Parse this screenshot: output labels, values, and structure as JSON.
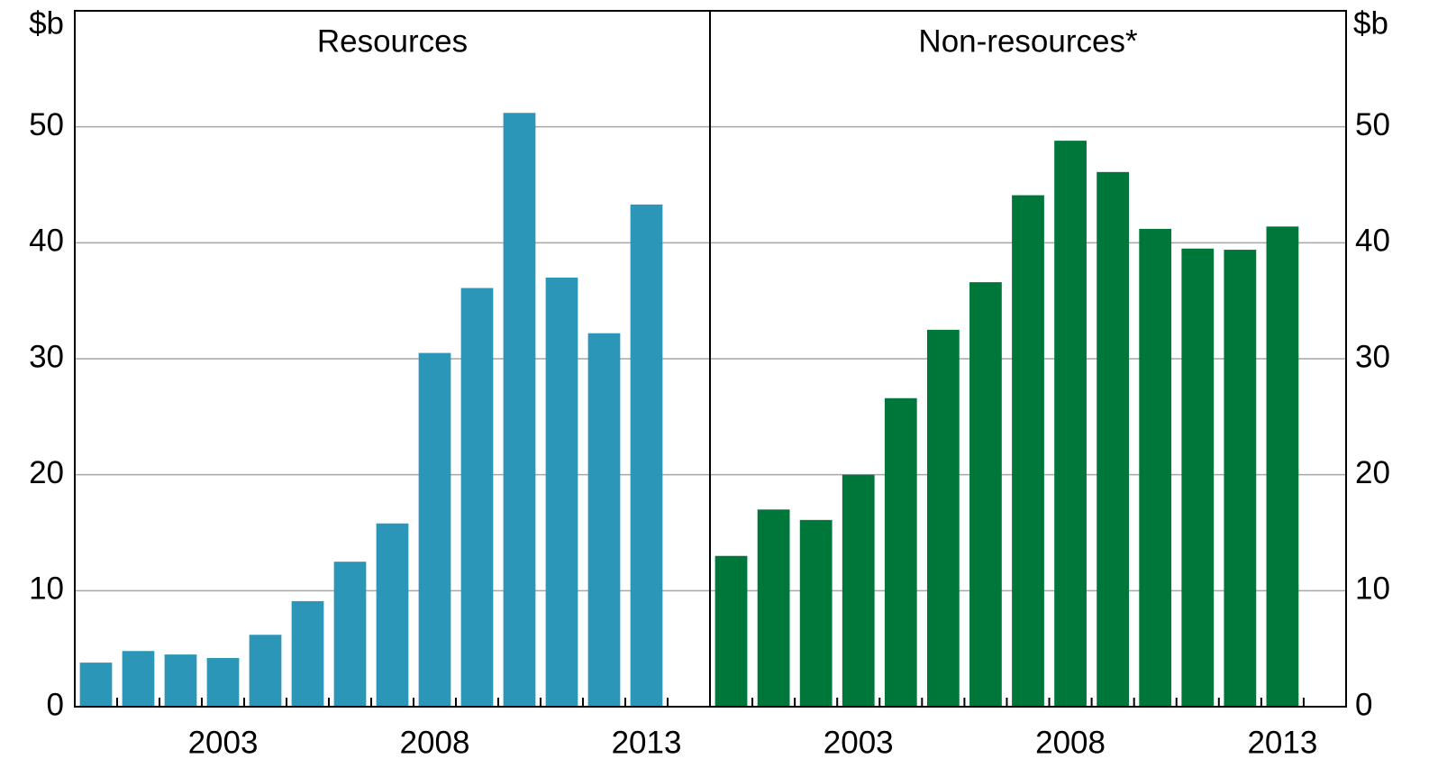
{
  "chart_data": [
    {
      "type": "bar",
      "title": "Resources",
      "y_unit": "$b",
      "color": "#2b96b8",
      "categories": [
        null,
        null,
        null,
        "2003",
        null,
        null,
        null,
        null,
        "2008",
        null,
        null,
        null,
        null,
        "2013"
      ],
      "values": [
        3.8,
        4.8,
        4.5,
        4.2,
        6.2,
        9.1,
        12.5,
        15.8,
        30.5,
        36.1,
        51.2,
        37.0,
        32.2,
        43.3
      ],
      "ylim": [
        0,
        60
      ],
      "yticks": [
        0,
        10,
        20,
        30,
        40,
        50
      ],
      "grid": true,
      "axis_side": "left"
    },
    {
      "type": "bar",
      "title": "Non-resources*",
      "y_unit": "$b",
      "color": "#00773a",
      "categories": [
        null,
        null,
        null,
        "2003",
        null,
        null,
        null,
        null,
        "2008",
        null,
        null,
        null,
        null,
        "2013"
      ],
      "values": [
        13.0,
        17.0,
        16.1,
        20.0,
        26.6,
        32.5,
        36.6,
        44.1,
        48.8,
        46.1,
        41.2,
        39.5,
        39.4,
        41.4
      ],
      "ylim": [
        0,
        60
      ],
      "yticks": [
        0,
        10,
        20,
        30,
        40,
        50
      ],
      "grid": true,
      "axis_side": "right"
    }
  ]
}
